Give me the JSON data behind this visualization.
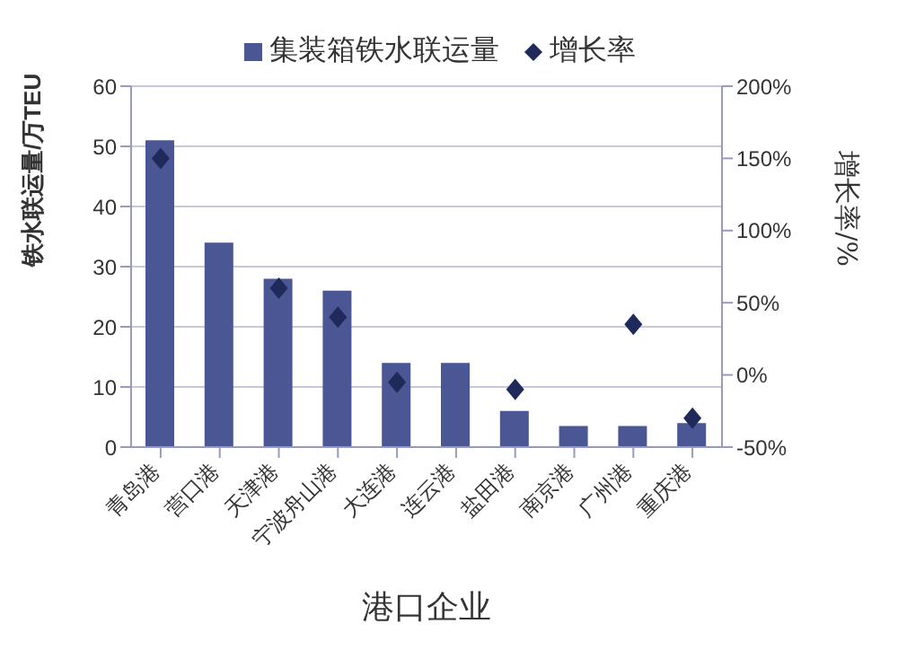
{
  "chart_data": {
    "type": "bar",
    "categories": [
      "青岛港",
      "营口港",
      "天津港",
      "宁波舟山港",
      "大连港",
      "连云港",
      "盐田港",
      "南京港",
      "广州港",
      "重庆港"
    ],
    "series": [
      {
        "name": "集装箱铁水联运量",
        "color": "#4b5694",
        "values": [
          51,
          34,
          28,
          26,
          14,
          14,
          6,
          3.5,
          3.5,
          4
        ]
      },
      {
        "name": "增长率",
        "type": "scatter",
        "axis": "y2",
        "marker": "diamond",
        "color": "#1f2a5a",
        "values": [
          150,
          null,
          60,
          40,
          -5,
          null,
          -10,
          null,
          35,
          -30
        ]
      }
    ],
    "xlabel": "港口企业",
    "ylabel": "铁水联运量/万TEU",
    "y2label": "增长率/%",
    "ylim": [
      0,
      60
    ],
    "yticks": [
      0,
      10,
      20,
      30,
      40,
      50,
      60
    ],
    "y2lim": [
      -50,
      200
    ],
    "y2ticks": [
      {
        "value": -50,
        "label": "-50%"
      },
      {
        "value": 0,
        "label": "0%"
      },
      {
        "value": 50,
        "label": "50%"
      },
      {
        "value": 100,
        "label": "100%"
      },
      {
        "value": 150,
        "label": "150%"
      },
      {
        "value": 200,
        "label": "200%"
      }
    ],
    "grid": "y",
    "legend": "top"
  }
}
